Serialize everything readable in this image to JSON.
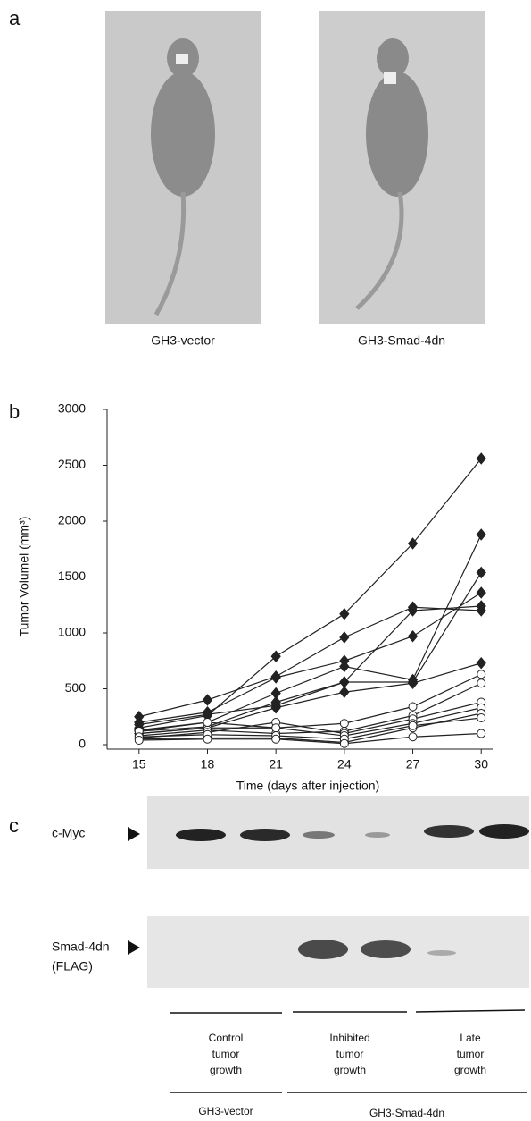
{
  "panel_labels": [
    "a",
    "b",
    "c"
  ],
  "photos": {
    "captions": [
      "GH3-vector",
      "GH3-Smad-4dn"
    ]
  },
  "chart_data": {
    "type": "line",
    "x_label": "Time (days after injection)",
    "y_label": "Tumor Volumel (mm³)",
    "x": [
      15,
      18,
      21,
      24,
      27,
      30
    ],
    "xlim": [
      13.6,
      30.5
    ],
    "xticks": [
      15,
      18,
      21,
      24,
      27,
      30
    ],
    "ylim": [
      0,
      3000
    ],
    "yticks": [
      0,
      500,
      1000,
      1500,
      2000,
      2500,
      3000
    ],
    "series": [
      {
        "color": "#222222",
        "marker": "diamond",
        "marker_fill": "#222222",
        "values": [
          150,
          260,
          790,
          1170,
          1800,
          2560
        ]
      },
      {
        "color": "#222222",
        "marker": "diamond",
        "marker_fill": "#222222",
        "values": [
          250,
          400,
          610,
          960,
          1230,
          1200
        ]
      },
      {
        "color": "#222222",
        "marker": "diamond",
        "marker_fill": "#222222",
        "values": [
          200,
          290,
          600,
          750,
          970,
          1360
        ]
      },
      {
        "color": "#222222",
        "marker": "diamond",
        "marker_fill": "#222222",
        "values": [
          130,
          200,
          460,
          700,
          580,
          1880
        ]
      },
      {
        "color": "#222222",
        "marker": "diamond",
        "marker_fill": "#222222",
        "values": [
          120,
          160,
          380,
          560,
          560,
          1540
        ]
      },
      {
        "color": "#222222",
        "marker": "diamond",
        "marker_fill": "#222222",
        "values": [
          100,
          150,
          330,
          470,
          550,
          730
        ]
      },
      {
        "color": "#222222",
        "marker": "diamond",
        "marker_fill": "#222222",
        "values": [
          180,
          270,
          350,
          560,
          1200,
          1240
        ]
      },
      {
        "color": "#222222",
        "marker": "circle",
        "marker_fill": "#ffffff",
        "values": [
          100,
          150,
          150,
          190,
          340,
          630
        ]
      },
      {
        "color": "#222222",
        "marker": "circle",
        "marker_fill": "#ffffff",
        "values": [
          80,
          130,
          100,
          120,
          260,
          550
        ]
      },
      {
        "color": "#222222",
        "marker": "circle",
        "marker_fill": "#ffffff",
        "values": [
          60,
          110,
          200,
          100,
          230,
          380
        ]
      },
      {
        "color": "#222222",
        "marker": "circle",
        "marker_fill": "#ffffff",
        "values": [
          120,
          200,
          150,
          80,
          190,
          330
        ]
      },
      {
        "color": "#222222",
        "marker": "circle",
        "marker_fill": "#ffffff",
        "values": [
          50,
          60,
          60,
          20,
          150,
          280
        ]
      },
      {
        "color": "#222222",
        "marker": "circle",
        "marker_fill": "#ffffff",
        "values": [
          70,
          90,
          80,
          50,
          170,
          240
        ]
      },
      {
        "color": "#222222",
        "marker": "circle",
        "marker_fill": "#ffffff",
        "values": [
          40,
          50,
          50,
          10,
          70,
          100
        ]
      }
    ]
  },
  "blot": {
    "rows": [
      [
        "c-Myc"
      ],
      [
        "Smad-4dn",
        "(FLAG)"
      ]
    ],
    "groups": [
      [
        "Control",
        "tumor",
        "growth"
      ],
      [
        "Inhibited",
        "tumor",
        "growth"
      ],
      [
        "Late",
        "tumor",
        "growth"
      ]
    ],
    "cell_lines": [
      "GH3-vector",
      "GH3-Smad-4dn"
    ]
  }
}
